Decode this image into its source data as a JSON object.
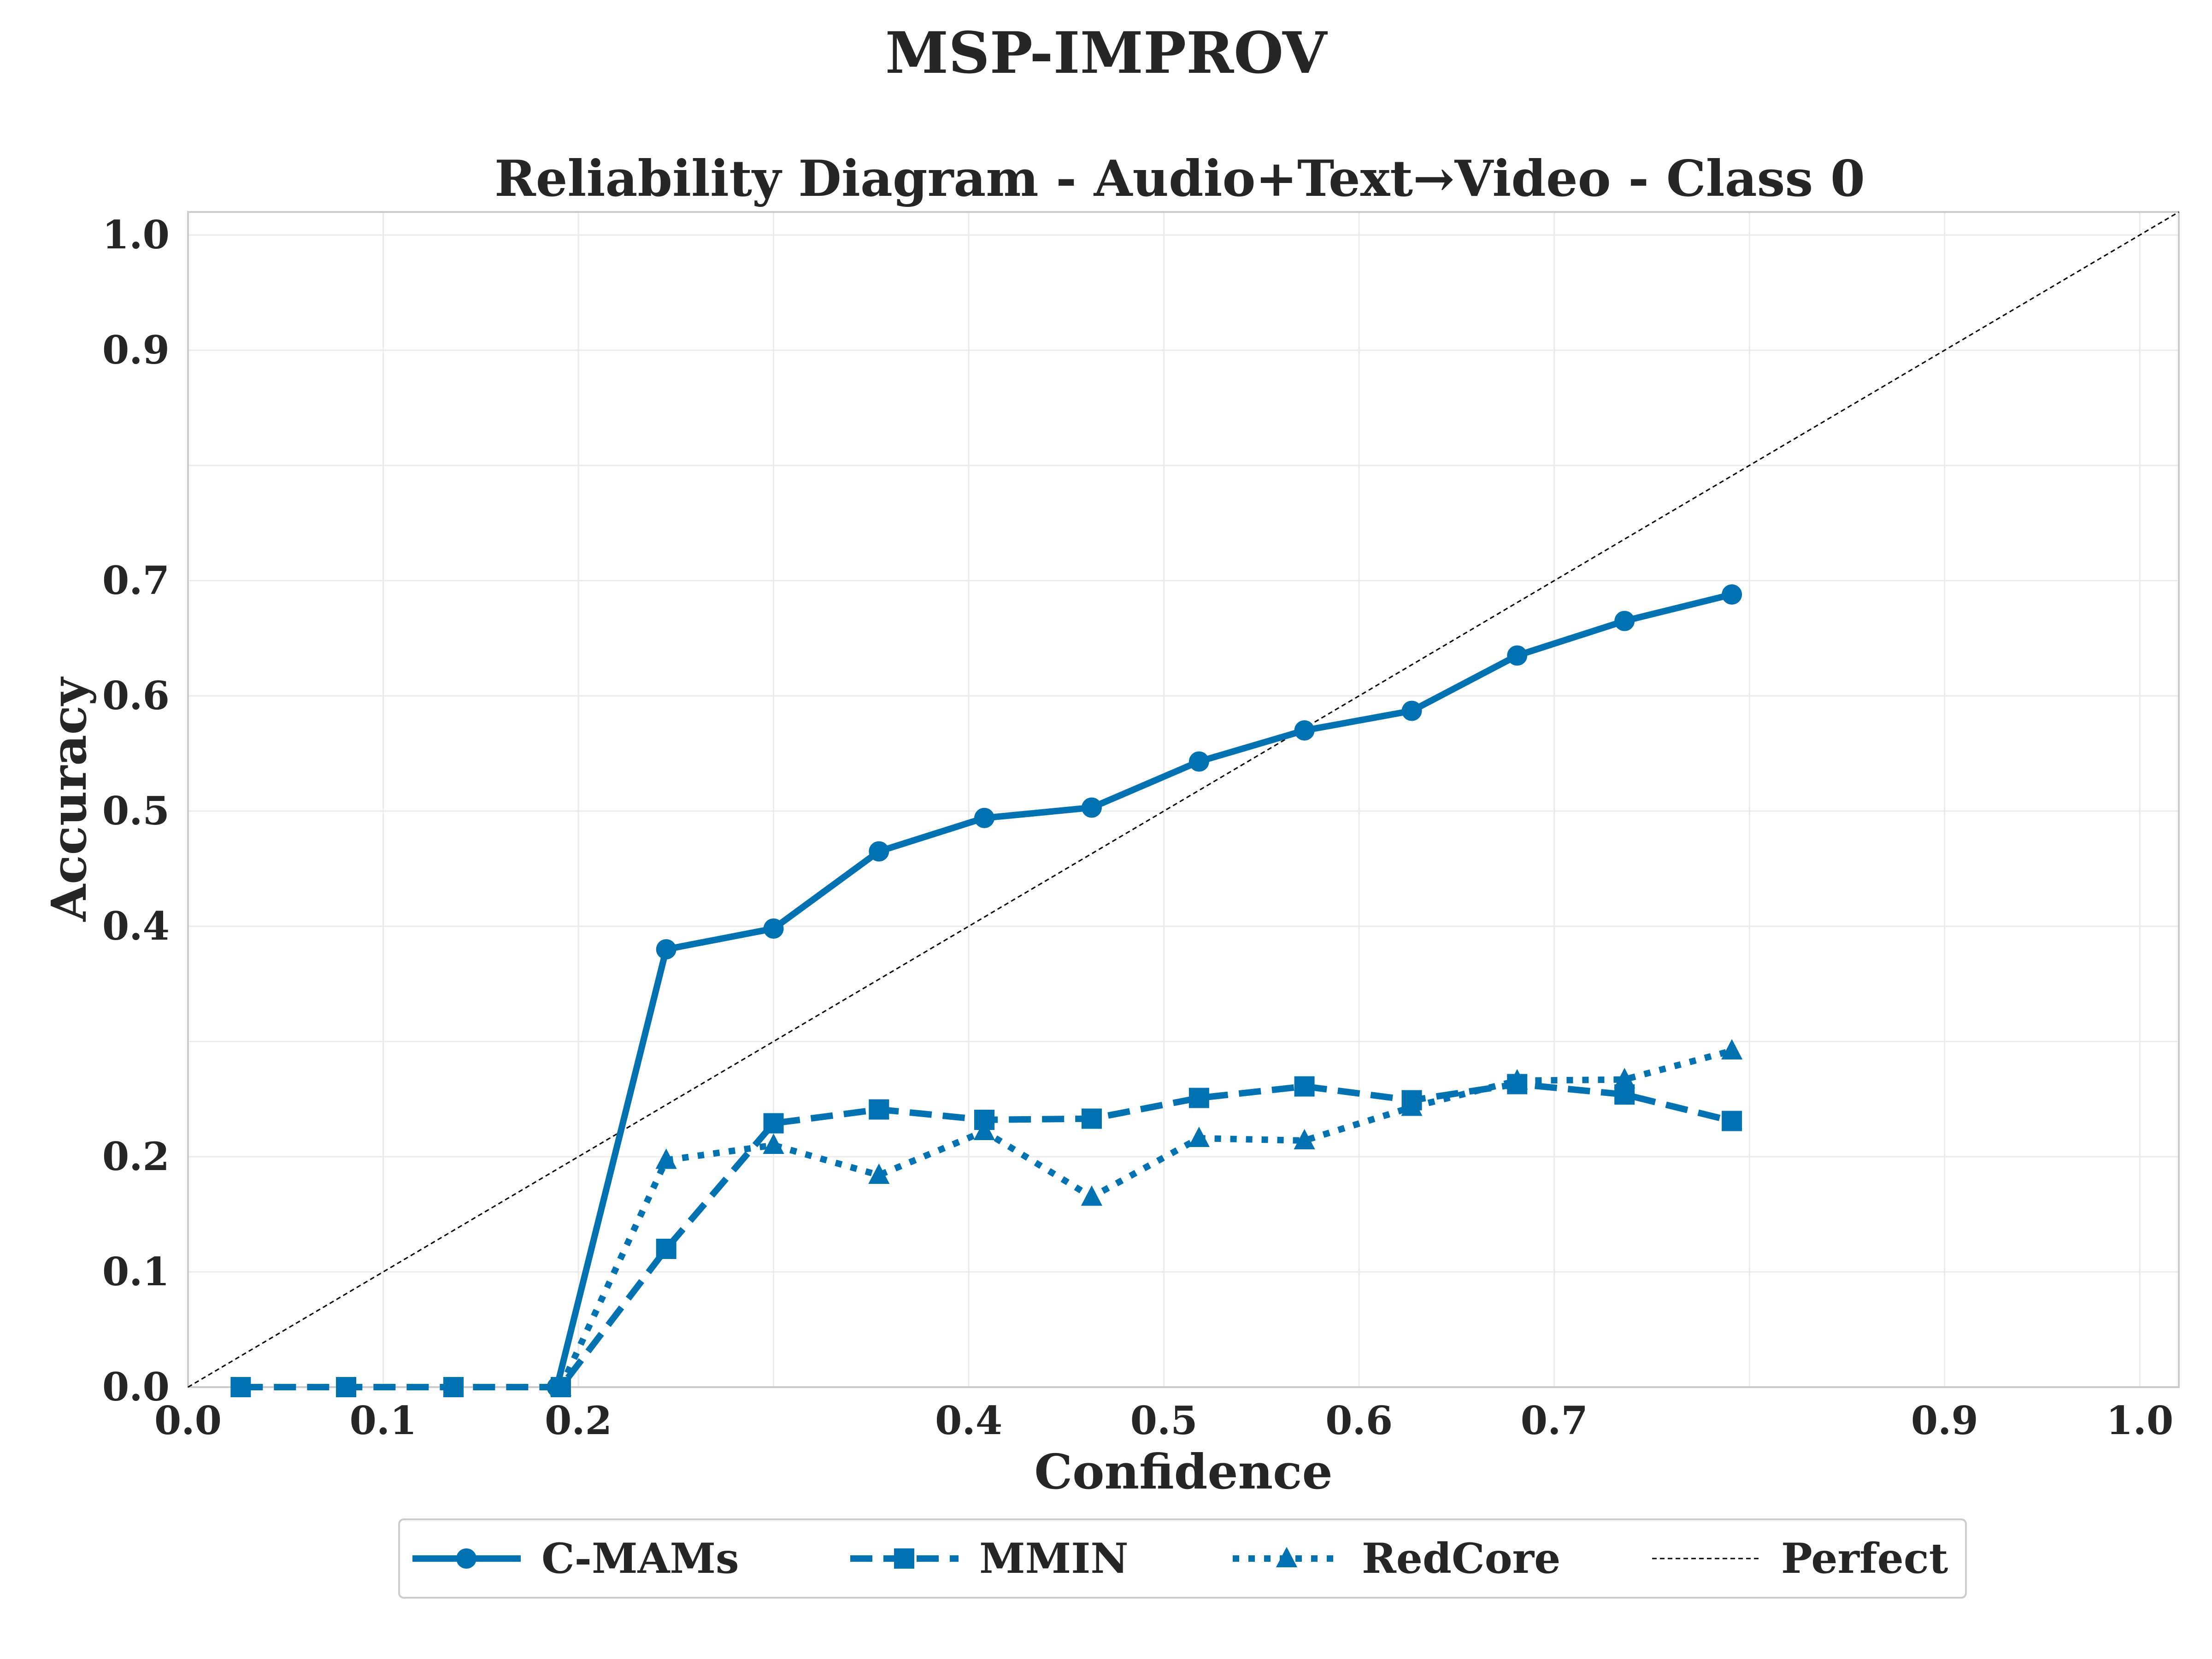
{
  "figure_title": "MSP-IMPROV",
  "chart_data": {
    "type": "line",
    "title": "Reliability Diagram - Audio+Text→Video - Class 0",
    "xlabel": "Confidence",
    "ylabel": "Accuracy",
    "xlim": [
      0.0,
      1.02
    ],
    "ylim": [
      0.0,
      1.02
    ],
    "x_ticks": [
      "0.0",
      "0.1",
      "0.2",
      "0.4",
      "0.5",
      "0.6",
      "0.7",
      "0.9",
      "1.0"
    ],
    "y_ticks": [
      "0.0",
      "0.1",
      "0.2",
      "0.4",
      "0.5",
      "0.6",
      "0.7",
      "0.9",
      "1.0"
    ],
    "grid": true,
    "legend_position": "bottom-center",
    "color": "#0072b2",
    "series": [
      {
        "name": "C-MAMs",
        "style": "solid",
        "marker": "circle",
        "x": [
          0.189,
          0.245,
          0.3,
          0.354,
          0.408,
          0.463,
          0.518,
          0.572,
          0.627,
          0.681,
          0.736,
          0.791
        ],
        "y": [
          0.0,
          0.38,
          0.398,
          0.465,
          0.494,
          0.503,
          0.543,
          0.57,
          0.587,
          0.635,
          0.665,
          0.688
        ]
      },
      {
        "name": "MMIN",
        "style": "dashed",
        "marker": "square",
        "x": [
          0.027,
          0.081,
          0.136,
          0.191,
          0.245,
          0.3,
          0.354,
          0.408,
          0.463,
          0.518,
          0.572,
          0.627,
          0.681,
          0.736,
          0.791
        ],
        "y": [
          0.0,
          0.0,
          0.0,
          0.0,
          0.12,
          0.229,
          0.241,
          0.232,
          0.233,
          0.251,
          0.261,
          0.249,
          0.263,
          0.254,
          0.231
        ]
      },
      {
        "name": "RedCore",
        "style": "dotted",
        "marker": "triangle",
        "x": [
          0.191,
          0.245,
          0.3,
          0.354,
          0.408,
          0.463,
          0.518,
          0.572,
          0.627,
          0.681,
          0.736,
          0.791
        ],
        "y": [
          0.0,
          0.197,
          0.21,
          0.184,
          0.222,
          0.165,
          0.216,
          0.214,
          0.243,
          0.266,
          0.267,
          0.292
        ]
      },
      {
        "name": "Perfect",
        "style": "thin-dashed",
        "marker": "none",
        "x": [
          0.0,
          1.02
        ],
        "y": [
          0.0,
          1.02
        ]
      }
    ]
  }
}
